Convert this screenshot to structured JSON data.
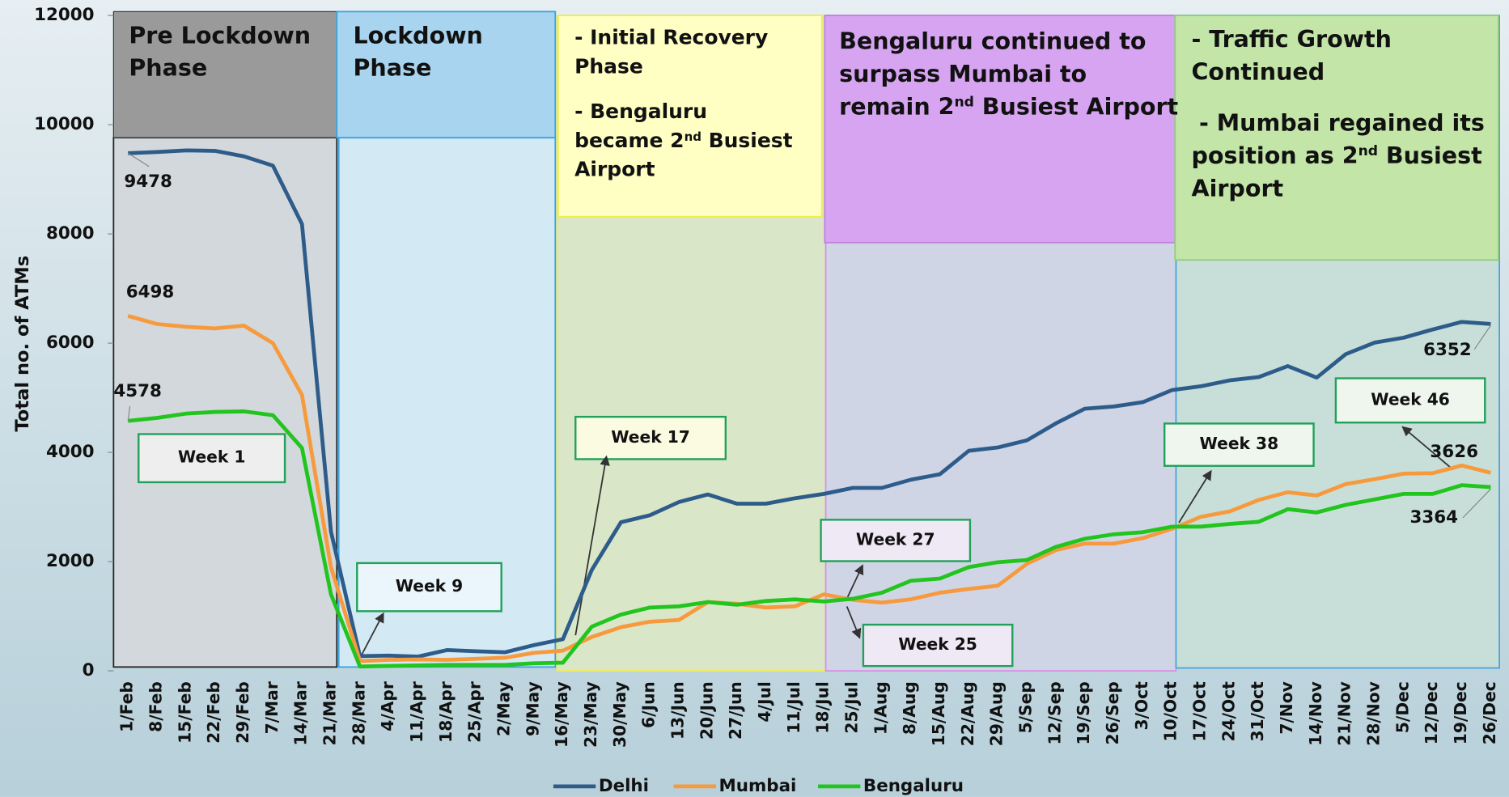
{
  "chart_data": {
    "type": "line",
    "y_axis_label": "Total no. of ATMs",
    "categories": [
      "1/Feb",
      "8/Feb",
      "15/Feb",
      "22/Feb",
      "29/Feb",
      "7/Mar",
      "14/Mar",
      "21/Mar",
      "28/Mar",
      "4/Apr",
      "11/Apr",
      "18/Apr",
      "25/Apr",
      "2/May",
      "9/May",
      "16/May",
      "23/May",
      "30/May",
      "6/Jun",
      "13/Jun",
      "20/Jun",
      "27/Jun",
      "4/Jul",
      "11/Jul",
      "18/Jul",
      "25/Jul",
      "1/Aug",
      "8/Aug",
      "15/Aug",
      "22/Aug",
      "29/Aug",
      "5/Sep",
      "12/Sep",
      "19/Sep",
      "26/Sep",
      "3/Oct",
      "10/Oct",
      "17/Oct",
      "24/Oct",
      "31/Oct",
      "7/Nov",
      "14/Nov",
      "21/Nov",
      "28/Nov",
      "5/Dec",
      "12/Dec",
      "19/Dec",
      "26/Dec"
    ],
    "series": [
      {
        "name": "Delhi",
        "color": "#2e5c8a",
        "values": [
          9478,
          9500,
          9530,
          9520,
          9420,
          9250,
          8180,
          2550,
          270,
          280,
          260,
          380,
          360,
          340,
          470,
          580,
          1850,
          2720,
          2850,
          3090,
          3230,
          3060,
          3060,
          3160,
          3240,
          3350,
          3350,
          3500,
          3600,
          4030,
          4090,
          4220,
          4530,
          4800,
          4840,
          4920,
          5140,
          5210,
          5320,
          5380,
          5580,
          5370,
          5800,
          6010,
          6100,
          6250,
          6390,
          6352
        ]
      },
      {
        "name": "Mumbai",
        "color": "#f79a3e",
        "values": [
          6498,
          6350,
          6300,
          6270,
          6320,
          6000,
          5050,
          1900,
          180,
          200,
          210,
          200,
          220,
          240,
          330,
          370,
          620,
          800,
          900,
          930,
          1260,
          1230,
          1160,
          1180,
          1400,
          1300,
          1250,
          1310,
          1430,
          1500,
          1560,
          1960,
          2210,
          2330,
          2330,
          2430,
          2600,
          2820,
          2920,
          3130,
          3270,
          3210,
          3420,
          3510,
          3610,
          3620,
          3760,
          3626
        ]
      },
      {
        "name": "Bengaluru",
        "color": "#22c41e",
        "values": [
          4578,
          4630,
          4710,
          4740,
          4750,
          4680,
          4080,
          1400,
          80,
          90,
          100,
          110,
          110,
          110,
          140,
          150,
          810,
          1030,
          1160,
          1180,
          1260,
          1210,
          1280,
          1310,
          1270,
          1320,
          1430,
          1650,
          1690,
          1900,
          1990,
          2030,
          2270,
          2420,
          2500,
          2540,
          2640,
          2640,
          2690,
          2730,
          2960,
          2900,
          3040,
          3140,
          3240,
          3240,
          3400,
          3364
        ]
      }
    ],
    "ylim": [
      0,
      12000
    ],
    "yticks": [
      0,
      2000,
      4000,
      6000,
      8000,
      10000,
      12000
    ],
    "grid": false,
    "legend": "bottom",
    "annotations": [
      "Week 1",
      "Week 9",
      "Week 17",
      "Week 27",
      "Week 25",
      "Week 38",
      "Week 46"
    ],
    "phases": [
      {
        "lines": [
          [
            "Pre Lockdown"
          ],
          [
            "Phase"
          ]
        ]
      },
      {
        "lines": [
          [
            "Lockdown"
          ],
          [
            "Phase"
          ]
        ]
      },
      {
        "lines": [
          [
            "- Initial Recovery"
          ],
          [
            "Phase"
          ],
          [
            "- Bengaluru"
          ],
          [
            "became 2",
            {
              "sup": "nd"
            },
            " Busiest"
          ],
          [
            "Airport"
          ]
        ]
      },
      {
        "lines": [
          [
            "Bengaluru  continued to"
          ],
          [
            "surpass Mumbai to"
          ],
          [
            "remain 2",
            {
              "sup": "nd"
            },
            " Busiest Airport"
          ]
        ]
      },
      {
        "lines": [
          [
            "- Traffic Growth"
          ],
          [
            "Continued"
          ],
          [
            "- Mumbai regained its"
          ],
          [
            "position as 2",
            {
              "sup": "nd"
            },
            " Busiest"
          ],
          [
            "Airport"
          ]
        ]
      }
    ]
  }
}
